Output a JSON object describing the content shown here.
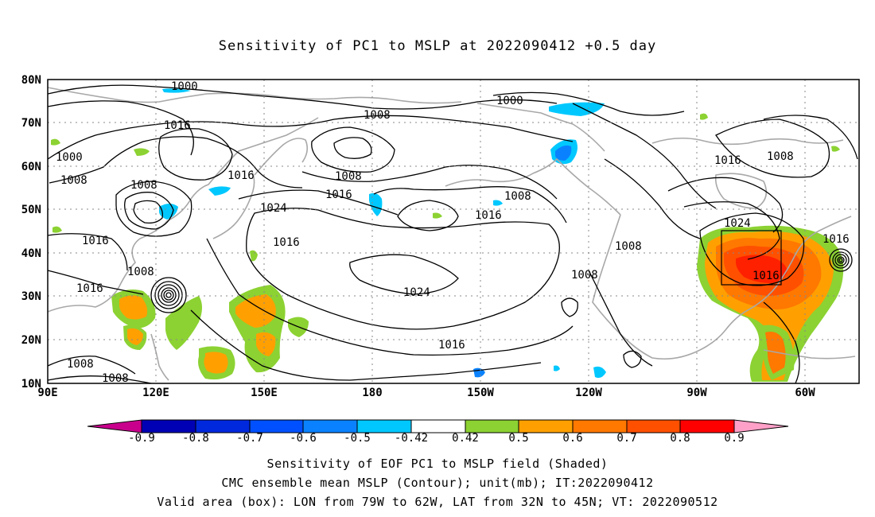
{
  "title": "Sensitivity of PC1 to MSLP at 2022090412 +0.5 day",
  "axes": {
    "lat_labels": [
      "80N",
      "70N",
      "60N",
      "50N",
      "40N",
      "30N",
      "20N",
      "10N"
    ],
    "lon_labels": [
      "90E",
      "120E",
      "150E",
      "180",
      "150W",
      "120W",
      "90W",
      "60W"
    ]
  },
  "contour_labels": [
    {
      "text": "1000",
      "id": "c1000-a"
    },
    {
      "text": "1000",
      "id": "c1000-b"
    },
    {
      "text": "1000",
      "id": "c1000-c"
    },
    {
      "text": "1008",
      "id": "c1008-a"
    },
    {
      "text": "1008",
      "id": "c1008-b"
    },
    {
      "text": "1008",
      "id": "c1008-c"
    },
    {
      "text": "1008",
      "id": "c1008-d"
    },
    {
      "text": "1008",
      "id": "c1008-e"
    },
    {
      "text": "1008",
      "id": "c1008-f"
    },
    {
      "text": "1008",
      "id": "c1008-g"
    },
    {
      "text": "1008",
      "id": "c1008-h"
    },
    {
      "text": "1008",
      "id": "c1008-i"
    },
    {
      "text": "1008",
      "id": "c1008-j"
    },
    {
      "text": "1008",
      "id": "c1008-k"
    },
    {
      "text": "1016",
      "id": "c1016-a"
    },
    {
      "text": "1016",
      "id": "c1016-b"
    },
    {
      "text": "1016",
      "id": "c1016-c"
    },
    {
      "text": "1016",
      "id": "c1016-d"
    },
    {
      "text": "1016",
      "id": "c1016-e"
    },
    {
      "text": "1016",
      "id": "c1016-f"
    },
    {
      "text": "1016",
      "id": "c1016-g"
    },
    {
      "text": "1016",
      "id": "c1016-h"
    },
    {
      "text": "1016",
      "id": "c1016-i"
    },
    {
      "text": "1016",
      "id": "c1016-j"
    },
    {
      "text": "1016",
      "id": "c1016-k"
    },
    {
      "text": "1024",
      "id": "c1024-a"
    },
    {
      "text": "1024",
      "id": "c1024-b"
    },
    {
      "text": "1024",
      "id": "c1024-c"
    }
  ],
  "colorbar": {
    "labels": [
      "-0.9",
      "-0.8",
      "-0.7",
      "-0.6",
      "-0.5",
      "-0.42",
      "0.42",
      "0.5",
      "0.6",
      "0.7",
      "0.8",
      "0.9"
    ],
    "colors": [
      "#0000b4",
      "#0028dc",
      "#0050ff",
      "#0a82ff",
      "#00c8ff",
      "#ffffff",
      "#8cd232",
      "#ffa000",
      "#ff7800",
      "#ff5000",
      "#ff0000"
    ],
    "low_end_color": "#c8008c",
    "high_end_color": "#ffa0c8"
  },
  "valid_box": {
    "lon_from": "79W",
    "lon_to": "62W",
    "lat_from": "32N",
    "lat_to": "45N"
  },
  "footer": {
    "line1": "Sensitivity of EOF PC1 to MSLP field (Shaded)",
    "line2": "CMC ensemble mean MSLP (Contour); unit(mb); IT:2022090412",
    "line3": "Valid area (box): LON from 79W to 62W, LAT from 32N to 45N; VT: 2022090512"
  }
}
